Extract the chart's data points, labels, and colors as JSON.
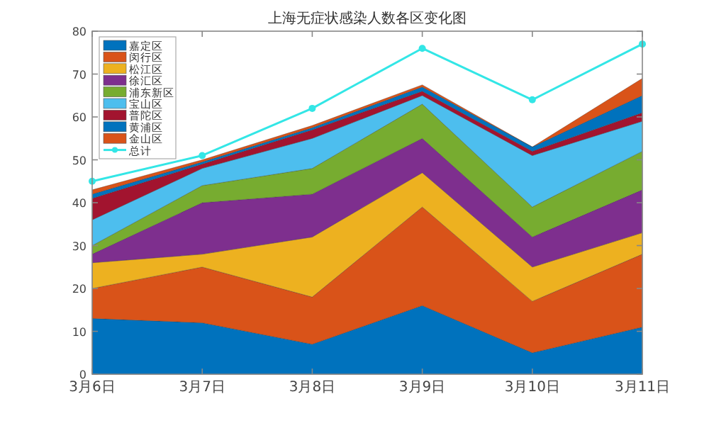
{
  "chart_data": {
    "type": "area",
    "title": "上海无症状感染人数各区变化图",
    "categories": [
      "3月6日",
      "3月7日",
      "3月8日",
      "3月9日",
      "3月10日",
      "3月11日"
    ],
    "stacked": true,
    "ylim": [
      0,
      80
    ],
    "yticks": [
      0,
      10,
      20,
      30,
      40,
      50,
      60,
      70,
      80
    ],
    "grid": false,
    "legend": "top left",
    "series": [
      {
        "name": "嘉定区",
        "color": "#0072bd",
        "values": [
          13,
          12,
          7,
          16,
          5,
          11
        ]
      },
      {
        "name": "闵行区",
        "color": "#d95319",
        "values": [
          7,
          13,
          11,
          23,
          12,
          17
        ]
      },
      {
        "name": "松江区",
        "color": "#edb120",
        "values": [
          6,
          3,
          14,
          8,
          8,
          5
        ]
      },
      {
        "name": "徐汇区",
        "color": "#7e2f8e",
        "values": [
          2,
          12,
          10,
          8,
          7,
          10
        ]
      },
      {
        "name": "浦东新区",
        "color": "#77ac30",
        "values": [
          2,
          4,
          6,
          8,
          7,
          9
        ]
      },
      {
        "name": "宝山区",
        "color": "#4dbeee",
        "values": [
          6,
          4,
          7,
          2,
          12,
          7
        ]
      },
      {
        "name": "普陀区",
        "color": "#a2142f",
        "values": [
          5,
          1,
          2,
          1,
          1,
          2
        ]
      },
      {
        "name": "黄浦区",
        "color": "#0072bd",
        "values": [
          1,
          0.5,
          0.5,
          1,
          1,
          4
        ]
      },
      {
        "name": "金山区",
        "color": "#d95319",
        "values": [
          1,
          0.5,
          0.5,
          0.5,
          0,
          4
        ]
      },
      {
        "name": "总计",
        "color": "#33e6e6",
        "type": "line",
        "marker": "circle",
        "values": [
          45,
          51,
          62,
          76,
          64,
          77
        ]
      }
    ]
  }
}
